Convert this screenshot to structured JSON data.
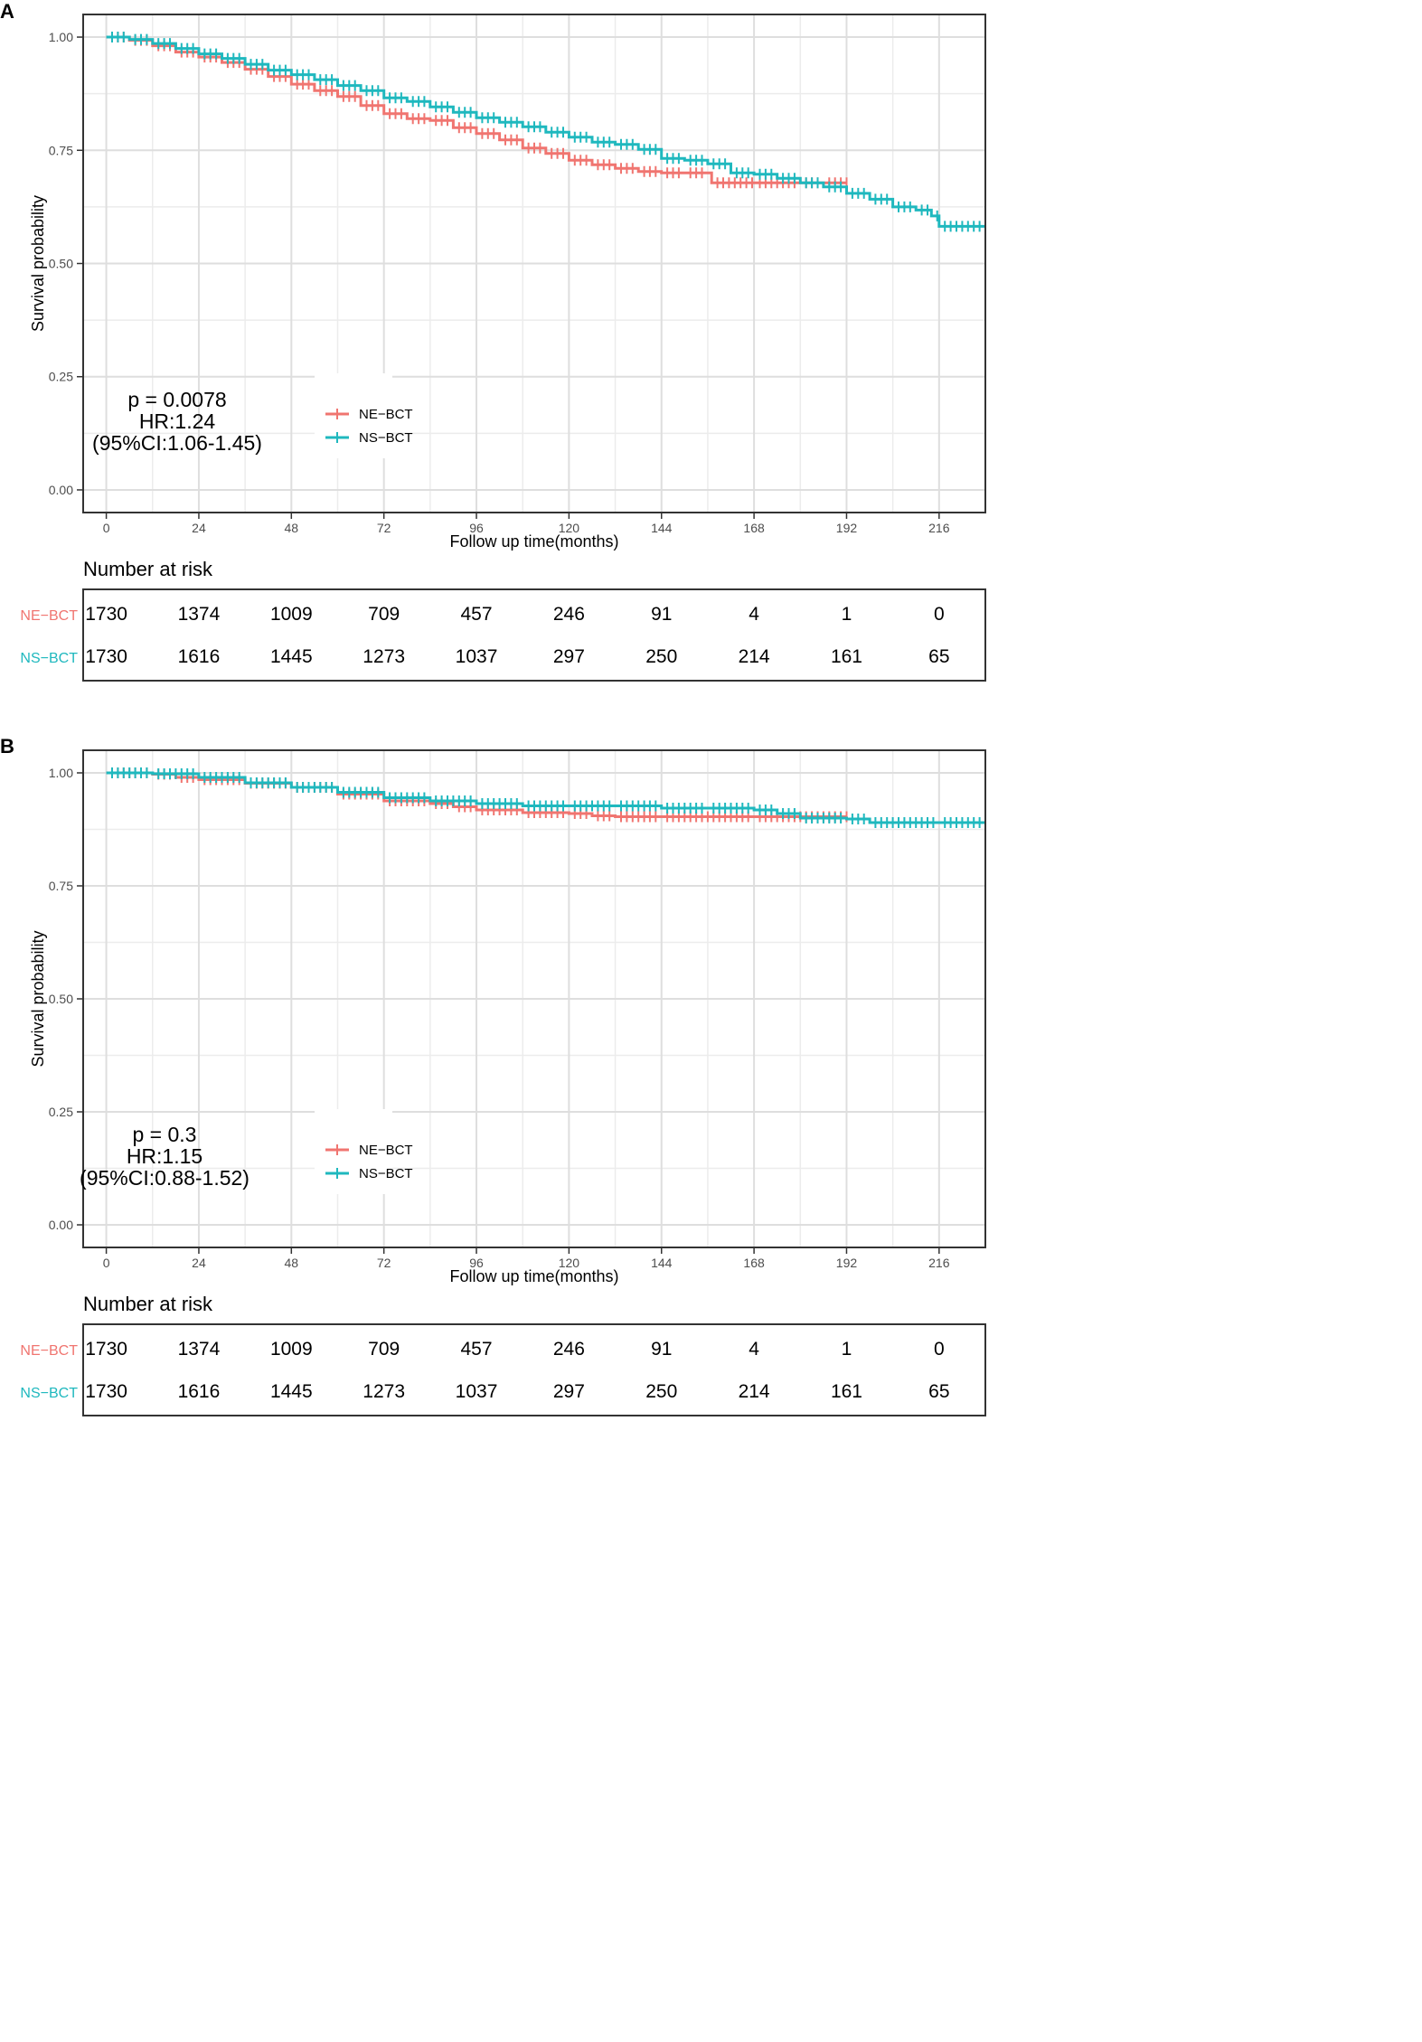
{
  "chart_data": [
    {
      "type": "line",
      "panel_label": "A",
      "xlabel": "Follow up time(months)",
      "ylabel": "Survival probability",
      "xlim": [
        -6,
        228
      ],
      "ylim": [
        -0.05,
        1.05
      ],
      "x_ticks": [
        0,
        24,
        48,
        72,
        96,
        120,
        144,
        168,
        192,
        216
      ],
      "x_tick_labels": [
        "0",
        "24",
        "48",
        "72",
        "96",
        "120",
        "144",
        "168",
        "192",
        "216"
      ],
      "y_ticks": [
        0,
        0.25,
        0.5,
        0.75,
        1
      ],
      "y_tick_labels": [
        "0.00",
        "0.25",
        "0.50",
        "0.75",
        "1.00"
      ],
      "grid": true,
      "legend_position": "lower-center",
      "annotation": [
        "p = 0.0078",
        "HR:1.24",
        "(95%CI:1.06-1.45)"
      ],
      "series": [
        {
          "name": "NE−BCT",
          "color": "#F07570",
          "points": [
            [
              0,
              1.0
            ],
            [
              6,
              0.993
            ],
            [
              12,
              0.981
            ],
            [
              18,
              0.967
            ],
            [
              24,
              0.956
            ],
            [
              30,
              0.944
            ],
            [
              36,
              0.929
            ],
            [
              42,
              0.913
            ],
            [
              48,
              0.896
            ],
            [
              54,
              0.882
            ],
            [
              60,
              0.869
            ],
            [
              66,
              0.849
            ],
            [
              72,
              0.831
            ],
            [
              78,
              0.82
            ],
            [
              84,
              0.816
            ],
            [
              90,
              0.8
            ],
            [
              96,
              0.787
            ],
            [
              102,
              0.773
            ],
            [
              108,
              0.755
            ],
            [
              114,
              0.743
            ],
            [
              120,
              0.728
            ],
            [
              126,
              0.718
            ],
            [
              132,
              0.71
            ],
            [
              138,
              0.703
            ],
            [
              144,
              0.7
            ],
            [
              150,
              0.7
            ],
            [
              156,
              0.7
            ],
            [
              157,
              0.678
            ],
            [
              168,
              0.678
            ],
            [
              180,
              0.678
            ],
            [
              186,
              0.678
            ],
            [
              192,
              0.678
            ]
          ]
        },
        {
          "name": "NS−BCT",
          "color": "#1FB8BE",
          "points": [
            [
              0,
              1.0
            ],
            [
              6,
              0.995
            ],
            [
              12,
              0.986
            ],
            [
              18,
              0.975
            ],
            [
              24,
              0.963
            ],
            [
              30,
              0.953
            ],
            [
              36,
              0.94
            ],
            [
              42,
              0.927
            ],
            [
              48,
              0.917
            ],
            [
              54,
              0.906
            ],
            [
              60,
              0.893
            ],
            [
              66,
              0.882
            ],
            [
              72,
              0.866
            ],
            [
              78,
              0.858
            ],
            [
              84,
              0.846
            ],
            [
              90,
              0.834
            ],
            [
              96,
              0.822
            ],
            [
              102,
              0.812
            ],
            [
              108,
              0.802
            ],
            [
              114,
              0.79
            ],
            [
              120,
              0.779
            ],
            [
              126,
              0.768
            ],
            [
              132,
              0.763
            ],
            [
              138,
              0.752
            ],
            [
              144,
              0.732
            ],
            [
              150,
              0.728
            ],
            [
              156,
              0.72
            ],
            [
              162,
              0.7
            ],
            [
              168,
              0.697
            ],
            [
              174,
              0.688
            ],
            [
              180,
              0.678
            ],
            [
              186,
              0.669
            ],
            [
              192,
              0.655
            ],
            [
              198,
              0.642
            ],
            [
              204,
              0.625
            ],
            [
              210,
              0.618
            ],
            [
              214,
              0.605
            ],
            [
              216,
              0.582
            ],
            [
              228,
              0.582
            ]
          ]
        }
      ],
      "risk_table": {
        "title": "Number at risk",
        "rows": [
          {
            "label": "NE−BCT",
            "color": "#F07570",
            "values": [
              "1730",
              "1374",
              "1009",
              "709",
              "457",
              "246",
              "91",
              "4",
              "1",
              "0"
            ]
          },
          {
            "label": "NS−BCT",
            "color": "#1FB8BE",
            "values": [
              "1730",
              "1616",
              "1445",
              "1273",
              "1037",
              "297",
              "250",
              "214",
              "161",
              "65"
            ]
          }
        ]
      }
    },
    {
      "type": "line",
      "panel_label": "B",
      "xlabel": "Follow up time(months)",
      "ylabel": "Survival probability",
      "xlim": [
        -6,
        228
      ],
      "ylim": [
        -0.05,
        1.05
      ],
      "x_ticks": [
        0,
        24,
        48,
        72,
        96,
        120,
        144,
        168,
        192,
        216
      ],
      "x_tick_labels": [
        "0",
        "24",
        "48",
        "72",
        "96",
        "120",
        "144",
        "168",
        "192",
        "216"
      ],
      "y_ticks": [
        0,
        0.25,
        0.5,
        0.75,
        1
      ],
      "y_tick_labels": [
        "0.00",
        "0.25",
        "0.50",
        "0.75",
        "1.00"
      ],
      "grid": true,
      "legend_position": "lower-center",
      "annotation": [
        "p = 0.3",
        "HR:1.15",
        "(95%CI:0.88-1.52)"
      ],
      "series": [
        {
          "name": "NE−BCT",
          "color": "#F07570",
          "points": [
            [
              0,
              1.0
            ],
            [
              12,
              0.997
            ],
            [
              18,
              0.99
            ],
            [
              24,
              0.985
            ],
            [
              36,
              0.977
            ],
            [
              48,
              0.968
            ],
            [
              60,
              0.953
            ],
            [
              72,
              0.938
            ],
            [
              84,
              0.932
            ],
            [
              90,
              0.925
            ],
            [
              96,
              0.918
            ],
            [
              108,
              0.912
            ],
            [
              120,
              0.91
            ],
            [
              126,
              0.905
            ],
            [
              132,
              0.903
            ],
            [
              144,
              0.903
            ],
            [
              168,
              0.903
            ],
            [
              192,
              0.903
            ]
          ]
        },
        {
          "name": "NS−BCT",
          "color": "#1FB8BE",
          "points": [
            [
              0,
              1.0
            ],
            [
              12,
              0.998
            ],
            [
              24,
              0.99
            ],
            [
              36,
              0.978
            ],
            [
              48,
              0.968
            ],
            [
              60,
              0.957
            ],
            [
              72,
              0.945
            ],
            [
              84,
              0.938
            ],
            [
              96,
              0.932
            ],
            [
              108,
              0.927
            ],
            [
              120,
              0.927
            ],
            [
              132,
              0.927
            ],
            [
              144,
              0.922
            ],
            [
              156,
              0.922
            ],
            [
              168,
              0.918
            ],
            [
              174,
              0.91
            ],
            [
              180,
              0.9
            ],
            [
              192,
              0.898
            ],
            [
              198,
              0.89
            ],
            [
              216,
              0.89
            ],
            [
              228,
              0.89
            ]
          ]
        }
      ],
      "risk_table": {
        "title": "Number at risk",
        "rows": [
          {
            "label": "NE−BCT",
            "color": "#F07570",
            "values": [
              "1730",
              "1374",
              "1009",
              "709",
              "457",
              "246",
              "91",
              "4",
              "1",
              "0"
            ]
          },
          {
            "label": "NS−BCT",
            "color": "#1FB8BE",
            "values": [
              "1730",
              "1616",
              "1445",
              "1273",
              "1037",
              "297",
              "250",
              "214",
              "161",
              "65"
            ]
          }
        ]
      }
    }
  ]
}
